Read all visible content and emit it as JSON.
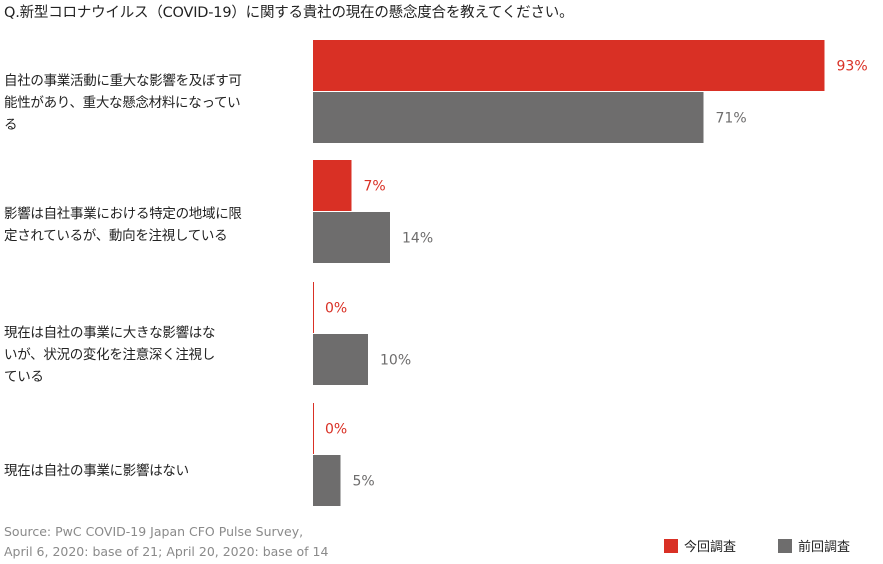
{
  "question": "Q.新型コロナウイルス（COVID-19）に関する貴社の現在の懸念度合を教えてください。",
  "categories": [
    [
      "自社の事業活動に重大な影響を及ぼす可",
      "能性があり、重大な懸念材料になってい",
      "る"
    ],
    [
      "影響は自社事業における特定の地域に限",
      "定されているが、動向を注視している"
    ],
    [
      "現在は自社の事業に大きな影響はな",
      "いが、状況の変化を注意深く注視し",
      "ている"
    ],
    [
      "現在は自社の事業に影響はない"
    ]
  ],
  "source": [
    "Source: PwC COVID-19 Japan CFO Pulse Survey,",
    "April 6, 2020: base of 21; April 20, 2020: base of 14"
  ],
  "legend": {
    "current": "今回調査",
    "previous": "前回調査"
  },
  "chart_data": {
    "type": "bar",
    "orientation": "horizontal",
    "categories": [
      "自社の事業活動に重大な影響を及ぼす可能性があり、重大な懸念材料になっている",
      "影響は自社事業における特定の地域に限定されているが、動向を注視している",
      "現在は自社の事業に大きな影響はないが、状況の変化を注意深く注視している",
      "現在は自社の事業に影響はない"
    ],
    "series": [
      {
        "name": "今回調査",
        "values": [
          93,
          7,
          0,
          0
        ],
        "labels": [
          "93%",
          "7%",
          "0%",
          "0%"
        ],
        "color": "#d93025",
        "label_color": "#d93025"
      },
      {
        "name": "前回調査",
        "values": [
          71,
          14,
          10,
          5
        ],
        "labels": [
          "71%",
          "14%",
          "10%",
          "5%"
        ],
        "color": "#6e6d6d",
        "label_color": "#6e6d6d"
      }
    ],
    "value_unit": "%",
    "xlim": [
      0,
      100
    ],
    "grid": false,
    "legend_position": "bottom-right",
    "title": "",
    "xlabel": "",
    "ylabel": ""
  }
}
